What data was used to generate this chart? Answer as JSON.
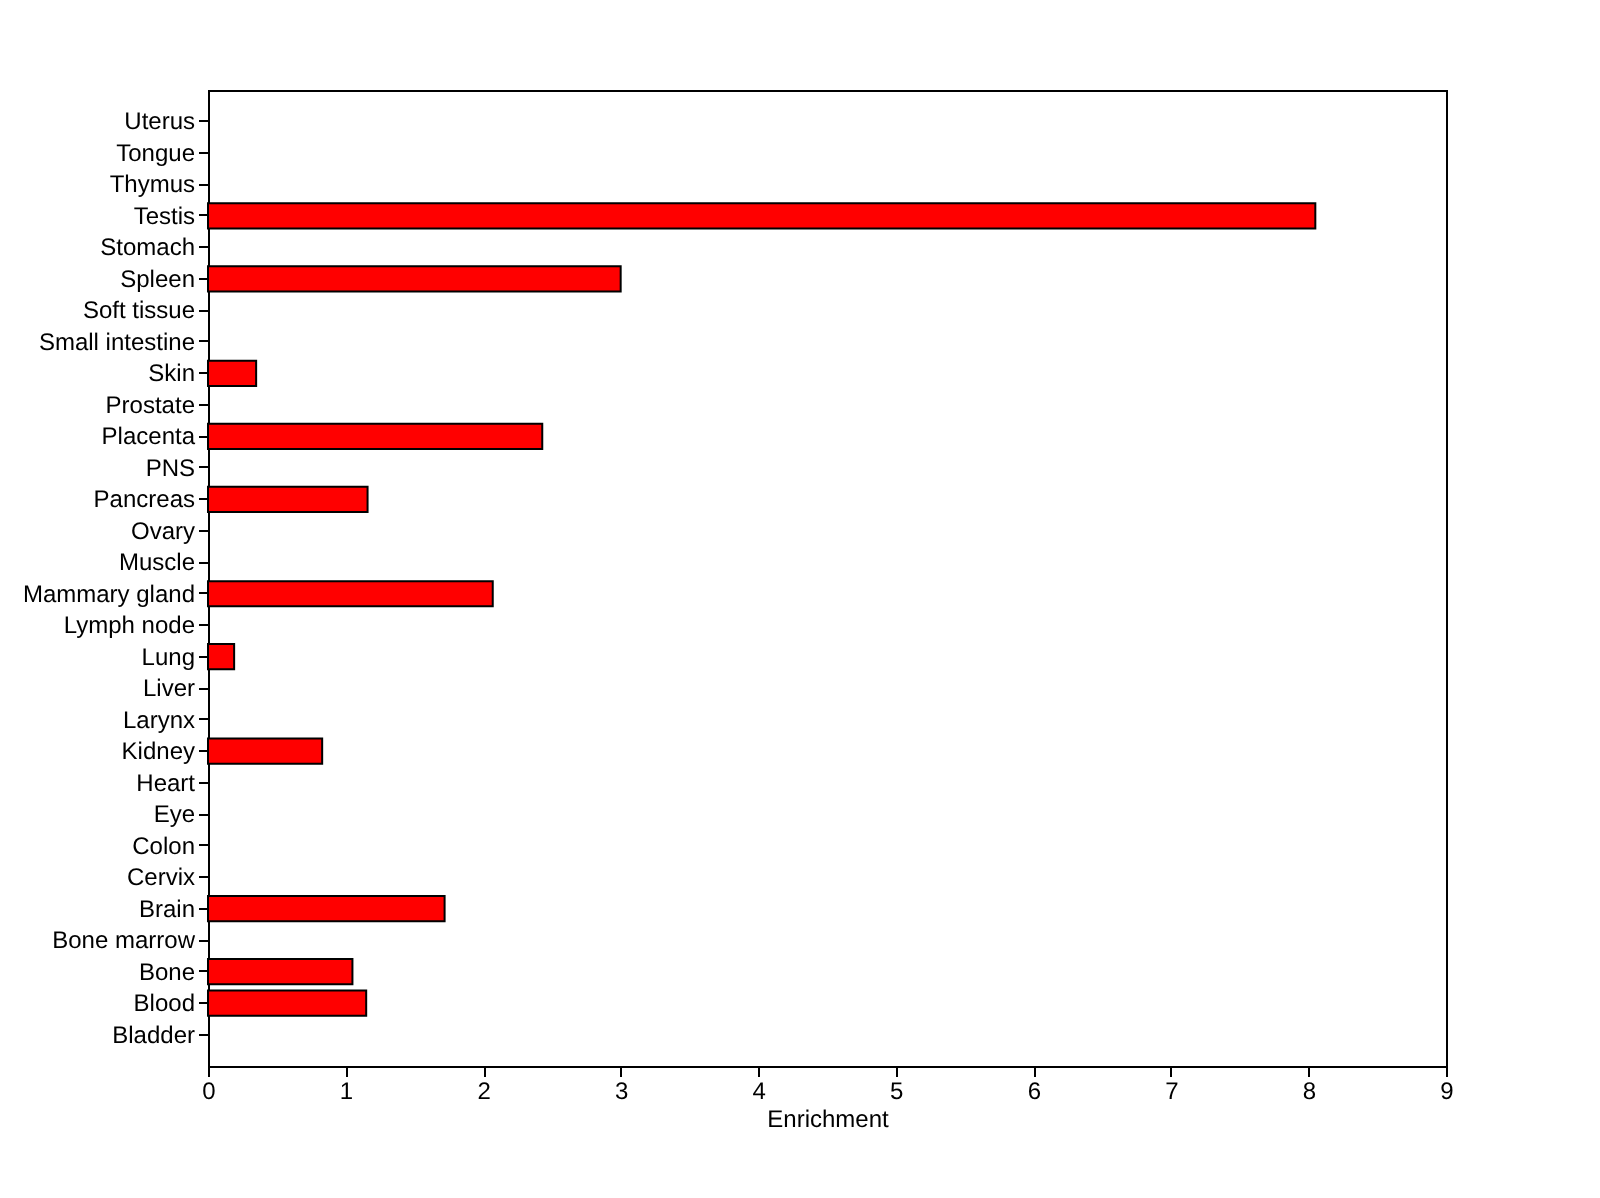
{
  "chart_data": {
    "type": "bar",
    "orientation": "horizontal",
    "xlabel": "Enrichment",
    "categories": [
      "Uterus",
      "Tongue",
      "Thymus",
      "Testis",
      "Stomach",
      "Spleen",
      "Soft tissue",
      "Small intestine",
      "Skin",
      "Prostate",
      "Placenta",
      "PNS",
      "Pancreas",
      "Ovary",
      "Muscle",
      "Mammary gland",
      "Lymph node",
      "Lung",
      "Liver",
      "Larynx",
      "Kidney",
      "Heart",
      "Eye",
      "Colon",
      "Cervix",
      "Brain",
      "Bone marrow",
      "Bone",
      "Blood",
      "Bladder"
    ],
    "values": [
      null,
      null,
      null,
      8.05,
      null,
      3.0,
      null,
      null,
      0.35,
      null,
      2.43,
      null,
      1.16,
      null,
      null,
      2.07,
      null,
      0.19,
      null,
      null,
      0.83,
      null,
      null,
      null,
      null,
      1.72,
      null,
      1.05,
      1.15,
      null
    ],
    "color": "#ff0000",
    "xlim": [
      0,
      9
    ],
    "xticks": [
      0,
      1,
      2,
      3,
      4,
      5,
      6,
      7,
      8,
      9
    ],
    "grid": false
  }
}
